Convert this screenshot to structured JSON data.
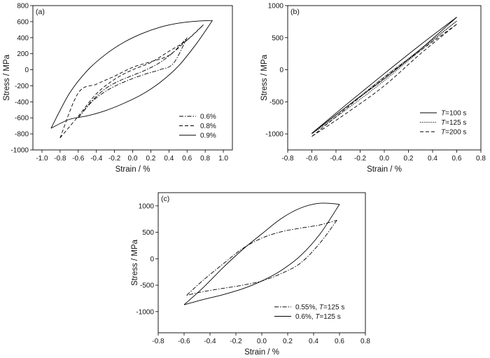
{
  "chart_data": [
    {
      "panel": "(a)",
      "type": "line",
      "xlabel": "Strain / %",
      "ylabel": "Stress / MPa",
      "xlim": [
        -1.1,
        1.1
      ],
      "ylim": [
        -1000,
        800
      ],
      "xticks": [
        "-1.0",
        "-0.8",
        "-0.6",
        "-0.4",
        "-0.2",
        "0.0",
        "0.2",
        "0.4",
        "0.6",
        "0.8",
        "1.0"
      ],
      "yticks": [
        "800",
        "600",
        "400",
        "200",
        "0",
        "-200",
        "-400",
        "-600",
        "-800",
        "-1000"
      ],
      "legend_position": "bottom-right",
      "series": [
        {
          "name": "0.6%",
          "style": "dashdot",
          "loading": {
            "x": [
              -0.6,
              -0.45,
              -0.3,
              -0.15,
              0.0,
              0.15,
              0.3,
              0.45,
              0.6
            ],
            "y": [
              -600,
              -390,
              -235,
              -140,
              -70,
              0,
              90,
              220,
              400
            ]
          },
          "unloading": {
            "x": [
              0.6,
              0.45,
              0.3,
              0.15,
              0.0,
              -0.15,
              -0.3,
              -0.45,
              -0.6
            ],
            "y": [
              400,
              80,
              0,
              -50,
              -110,
              -180,
              -270,
              -400,
              -600
            ]
          }
        },
        {
          "name": "0.8%",
          "style": "dashed",
          "loading": {
            "x": [
              -0.8,
              -0.6,
              -0.4,
              -0.2,
              0.0,
              0.2,
              0.4,
              0.6,
              0.78
            ],
            "y": [
              -850,
              -580,
              -300,
              -120,
              0,
              90,
              230,
              370,
              560
            ]
          },
          "unloading": {
            "x": [
              0.78,
              0.6,
              0.4,
              0.2,
              0.0,
              -0.2,
              -0.4,
              -0.6,
              -0.8
            ],
            "y": [
              560,
              370,
              180,
              100,
              30,
              -80,
              -180,
              -290,
              -850
            ]
          }
        },
        {
          "name": "0.9%",
          "style": "solid",
          "loading": {
            "x": [
              -0.9,
              -0.7,
              -0.5,
              -0.3,
              -0.1,
              0.1,
              0.3,
              0.5,
              0.7,
              0.88
            ],
            "y": [
              -730,
              -300,
              -10,
              190,
              340,
              450,
              530,
              580,
              605,
              615
            ]
          },
          "unloading": {
            "x": [
              0.88,
              0.7,
              0.5,
              0.3,
              0.1,
              -0.1,
              -0.3,
              -0.5,
              -0.7,
              -0.9
            ],
            "y": [
              615,
              320,
              40,
              -160,
              -310,
              -420,
              -510,
              -575,
              -620,
              -730
            ]
          }
        }
      ]
    },
    {
      "panel": "(b)",
      "type": "line",
      "xlabel": "Strain / %",
      "ylabel": "Stress / MPa",
      "xlim": [
        -0.8,
        0.8
      ],
      "ylim": [
        -1250,
        1000
      ],
      "xticks": [
        "-0.8",
        "-0.6",
        "-0.4",
        "-0.2",
        "0.0",
        "0.2",
        "0.4",
        "0.6",
        "0.8"
      ],
      "yticks": [
        "1000",
        "500",
        "0",
        "-500",
        "-1000"
      ],
      "legend_position": "bottom-right",
      "series": [
        {
          "name_prefix": "T",
          "name_suffix": "=100 s",
          "style": "solid",
          "loading": {
            "x": [
              -0.6,
              -0.3,
              0.0,
              0.3,
              0.6
            ],
            "y": [
              -990,
              -520,
              -60,
              390,
              820
            ]
          },
          "unloading": {
            "x": [
              0.6,
              0.3,
              0.0,
              -0.3,
              -0.6
            ],
            "y": [
              820,
              320,
              -140,
              -560,
              -990
            ]
          }
        },
        {
          "name_prefix": "T",
          "name_suffix": "=125 s",
          "style": "dotted",
          "loading": {
            "x": [
              -0.6,
              -0.3,
              0.0,
              0.3,
              0.6
            ],
            "y": [
              -1000,
              -560,
              -110,
              320,
              760
            ]
          },
          "unloading": {
            "x": [
              0.6,
              0.3,
              0.0,
              -0.3,
              -0.6
            ],
            "y": [
              760,
              300,
              -170,
              -600,
              -1000
            ]
          }
        },
        {
          "name_prefix": "T",
          "name_suffix": "=200 s",
          "style": "dashed",
          "loading": {
            "x": [
              -0.6,
              -0.3,
              0.0,
              0.3,
              0.6
            ],
            "y": [
              -1040,
              -580,
              -120,
              300,
              710
            ]
          },
          "unloading": {
            "x": [
              0.6,
              0.3,
              0.0,
              -0.3,
              -0.6
            ],
            "y": [
              710,
              250,
              -250,
              -660,
              -1040
            ]
          }
        }
      ]
    },
    {
      "panel": "(c)",
      "type": "line",
      "xlabel": "Strain / %",
      "ylabel": "Stress / MPa",
      "xlim": [
        -0.8,
        0.8
      ],
      "ylim": [
        -1400,
        1250
      ],
      "xticks": [
        "-0.8",
        "-0.6",
        "-0.4",
        "-0.2",
        "0.0",
        "0.2",
        "0.4",
        "0.6",
        "0.8"
      ],
      "yticks": [
        "1000",
        "500",
        "0",
        "-500",
        "-1000"
      ],
      "legend_position": "bottom-right",
      "series": [
        {
          "name_prefix": "0.55%, ",
          "name_mid": "T",
          "name_suffix": "=125 s",
          "style": "dashdot",
          "loading": {
            "x": [
              -0.58,
              -0.45,
              -0.3,
              -0.15,
              0.0,
              0.15,
              0.3,
              0.45,
              0.58
            ],
            "y": [
              -690,
              -400,
              -100,
              190,
              390,
              510,
              580,
              640,
              730
            ]
          },
          "unloading": {
            "x": [
              0.58,
              0.45,
              0.3,
              0.15,
              0.0,
              -0.15,
              -0.3,
              -0.45,
              -0.58
            ],
            "y": [
              730,
              300,
              -80,
              -280,
              -420,
              -500,
              -560,
              -620,
              -690
            ]
          }
        },
        {
          "name_prefix": "0.6%, ",
          "name_mid": "T",
          "name_suffix": "=125 s",
          "style": "solid",
          "loading": {
            "x": [
              -0.6,
              -0.45,
              -0.3,
              -0.15,
              0.0,
              0.15,
              0.3,
              0.45,
              0.6
            ],
            "y": [
              -870,
              -540,
              -170,
              170,
              470,
              760,
              960,
              1050,
              1030
            ]
          },
          "unloading": {
            "x": [
              0.6,
              0.45,
              0.3,
              0.15,
              0.0,
              -0.15,
              -0.3,
              -0.45,
              -0.6
            ],
            "y": [
              1030,
              470,
              60,
              -220,
              -420,
              -570,
              -680,
              -770,
              -870
            ]
          }
        }
      ]
    }
  ]
}
